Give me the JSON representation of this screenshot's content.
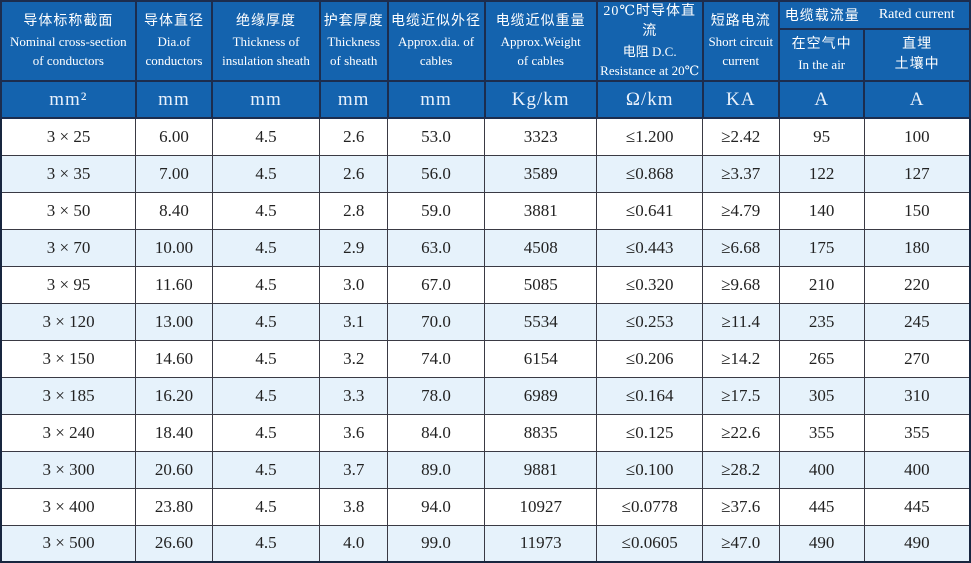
{
  "colors": {
    "header_blue": "#1463ae",
    "header_border": "#1c2d4e",
    "row_alt_blue": "#e6f2fb",
    "grid_line": "#3a3a44",
    "body_text": "#222222",
    "header_text": "#ffffff"
  },
  "table": {
    "rated_group": {
      "cn": "电缆载流量",
      "en": "Rated current"
    },
    "columns": [
      {
        "line1": "导体标称截面",
        "line2": "Nominal cross-section",
        "line3": "of conductors",
        "unit": "mm²"
      },
      {
        "line1": "导体直径",
        "line2": "Dia.of",
        "line3": "conductors",
        "unit": "mm"
      },
      {
        "line1": "绝缘厚度",
        "line2": "Thickness of",
        "line3": "insulation sheath",
        "unit": "mm"
      },
      {
        "line1": "护套厚度",
        "line2": "Thickness",
        "line3": "of sheath",
        "unit": "mm"
      },
      {
        "line1": "电缆近似外径",
        "line2": "Approx.dia. of",
        "line3": "cables",
        "unit": "mm"
      },
      {
        "line1": "电缆近似重量",
        "line2": "Approx.Weight",
        "line3": "of cables",
        "unit": "Kg/km"
      },
      {
        "line1": "20℃时导体直流",
        "line2": "电阻 D.C.",
        "line3": "Resistance at 20℃",
        "unit": "Ω/km"
      },
      {
        "line1": "短路电流",
        "line2": "Short circuit",
        "line3": "current",
        "unit": "KA"
      },
      {
        "line1": "在空气中",
        "line2": "In the air",
        "line3": "",
        "unit": "A"
      },
      {
        "line1": "直埋",
        "line2": "土壤中",
        "line3": "",
        "unit": "A"
      }
    ],
    "rows": [
      [
        "3 × 25",
        "6.00",
        "4.5",
        "2.6",
        "53.0",
        "3323",
        "≤1.200",
        "≥2.42",
        "95",
        "100"
      ],
      [
        "3 × 35",
        "7.00",
        "4.5",
        "2.6",
        "56.0",
        "3589",
        "≤0.868",
        "≥3.37",
        "122",
        "127"
      ],
      [
        "3 × 50",
        "8.40",
        "4.5",
        "2.8",
        "59.0",
        "3881",
        "≤0.641",
        "≥4.79",
        "140",
        "150"
      ],
      [
        "3 × 70",
        "10.00",
        "4.5",
        "2.9",
        "63.0",
        "4508",
        "≤0.443",
        "≥6.68",
        "175",
        "180"
      ],
      [
        "3 × 95",
        "11.60",
        "4.5",
        "3.0",
        "67.0",
        "5085",
        "≤0.320",
        "≥9.68",
        "210",
        "220"
      ],
      [
        "3 × 120",
        "13.00",
        "4.5",
        "3.1",
        "70.0",
        "5534",
        "≤0.253",
        "≥11.4",
        "235",
        "245"
      ],
      [
        "3 × 150",
        "14.60",
        "4.5",
        "3.2",
        "74.0",
        "6154",
        "≤0.206",
        "≥14.2",
        "265",
        "270"
      ],
      [
        "3 × 185",
        "16.20",
        "4.5",
        "3.3",
        "78.0",
        "6989",
        "≤0.164",
        "≥17.5",
        "305",
        "310"
      ],
      [
        "3 × 240",
        "18.40",
        "4.5",
        "3.6",
        "84.0",
        "8835",
        "≤0.125",
        "≥22.6",
        "355",
        "355"
      ],
      [
        "3 × 300",
        "20.60",
        "4.5",
        "3.7",
        "89.0",
        "9881",
        "≤0.100",
        "≥28.2",
        "400",
        "400"
      ],
      [
        "3 × 400",
        "23.80",
        "4.5",
        "3.8",
        "94.0",
        "10927",
        "≤0.0778",
        "≥37.6",
        "445",
        "445"
      ],
      [
        "3 × 500",
        "26.60",
        "4.5",
        "4.0",
        "99.0",
        "11973",
        "≤0.0605",
        "≥47.0",
        "490",
        "490"
      ]
    ]
  }
}
